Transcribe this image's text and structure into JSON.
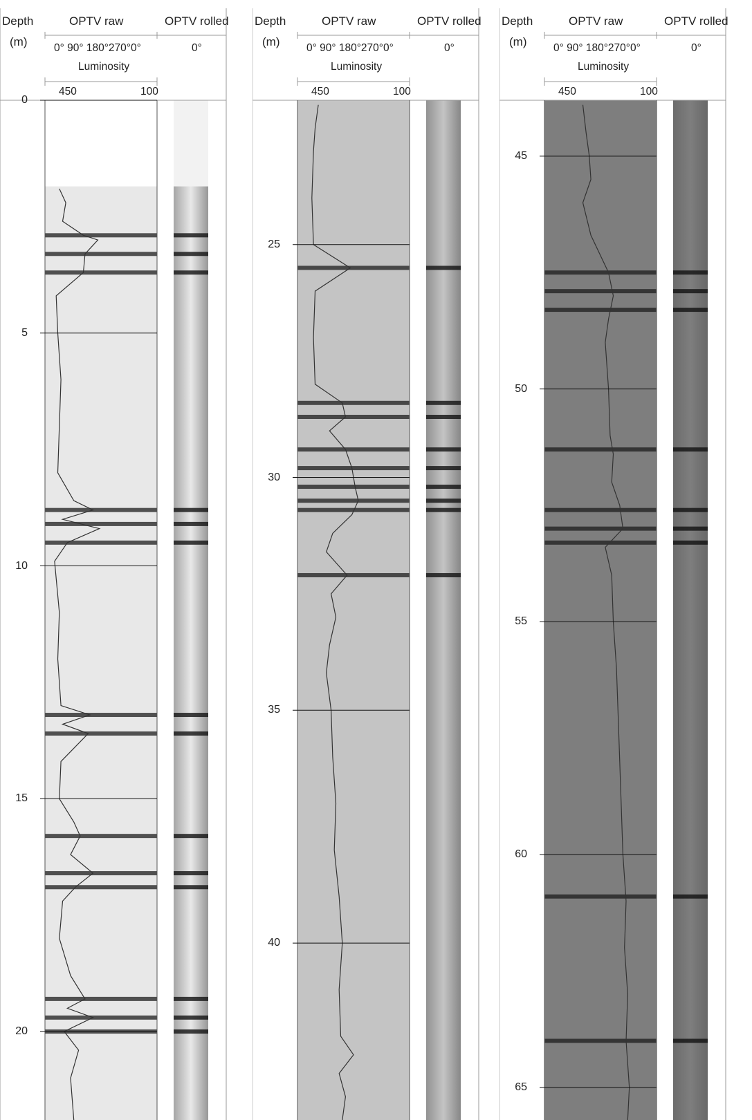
{
  "headers": {
    "depth": "Depth",
    "unit": "(m)",
    "raw": "OPTV raw",
    "rolled": "OPTV rolled",
    "azimuths": "0° 90° 180°270°0°",
    "rolled_azimuth": "0°",
    "luminosity": "Luminosity",
    "lum_left": "450",
    "lum_right": "100"
  },
  "colors": {
    "grid": "#999999",
    "trace": "#333333",
    "panel1_tone": "#e8e8e8",
    "panel2_tone": "#c4c4c4",
    "panel3_tone": "#7e7e7e"
  },
  "chart_data": [
    {
      "type": "line",
      "title": "",
      "xlabel": "Luminosity",
      "ylabel": "Depth (m)",
      "xlim": [
        450,
        100
      ],
      "ylim": [
        0,
        21.9
      ],
      "depth_ticks": [
        0,
        5,
        10,
        15,
        20
      ],
      "depth_tick_labels": [
        "0",
        "5",
        "10",
        "15",
        "20"
      ],
      "image_start_depth": 1.85,
      "dark_bands": [
        2.9,
        3.3,
        3.7,
        8.8,
        9.1,
        9.5,
        13.2,
        13.6,
        15.8,
        16.6,
        16.9,
        19.3,
        19.7,
        20.0
      ],
      "series": [
        {
          "depth": [
            1.9,
            2.2,
            2.6,
            2.9,
            3.0,
            3.3,
            3.7,
            4.2,
            5.0,
            6.0,
            7.0,
            8.0,
            8.6,
            8.8,
            9.0,
            9.2,
            9.5,
            9.9,
            11.0,
            12.0,
            13.0,
            13.2,
            13.4,
            13.6,
            14.2,
            15.0,
            15.5,
            15.8,
            16.2,
            16.6,
            16.9,
            17.2,
            18.0,
            18.8,
            19.3,
            19.5,
            19.7,
            20.0,
            20.4,
            21.0,
            21.9
          ],
          "luminosity": [
            405,
            385,
            395,
            330,
            285,
            325,
            330,
            415,
            410,
            400,
            405,
            410,
            360,
            300,
            395,
            280,
            380,
            420,
            405,
            410,
            400,
            310,
            395,
            315,
            400,
            405,
            360,
            340,
            370,
            300,
            355,
            395,
            405,
            370,
            325,
            380,
            300,
            390,
            345,
            370,
            360
          ]
        }
      ]
    },
    {
      "type": "line",
      "title": "",
      "xlabel": "Luminosity",
      "ylabel": "Depth (m)",
      "xlim": [
        450,
        100
      ],
      "ylim": [
        21.9,
        43.8
      ],
      "depth_ticks": [
        25,
        30,
        35,
        40
      ],
      "depth_tick_labels": [
        "25",
        "30",
        "35",
        "40"
      ],
      "image_start_depth": 21.9,
      "dark_bands": [
        25.5,
        28.4,
        28.7,
        29.4,
        29.8,
        30.2,
        30.5,
        30.7,
        32.1
      ],
      "series": [
        {
          "depth": [
            22.0,
            22.5,
            23.0,
            24.0,
            25.0,
            25.5,
            26.0,
            27.0,
            28.0,
            28.4,
            28.7,
            29.0,
            29.4,
            29.8,
            30.2,
            30.5,
            30.8,
            31.2,
            31.6,
            32.1,
            32.5,
            33.0,
            33.6,
            34.2,
            35.0,
            36.0,
            37.0,
            38.0,
            39.0,
            40.0,
            41.0,
            42.0,
            42.4,
            42.8,
            43.3,
            43.8
          ],
          "luminosity": [
            385,
            395,
            400,
            405,
            400,
            285,
            395,
            400,
            395,
            310,
            300,
            350,
            300,
            280,
            270,
            260,
            280,
            340,
            360,
            295,
            345,
            330,
            350,
            360,
            345,
            340,
            330,
            335,
            320,
            310,
            320,
            315,
            275,
            320,
            300,
            310
          ]
        }
      ]
    },
    {
      "type": "line",
      "title": "",
      "xlabel": "Luminosity",
      "ylabel": "Depth (m)",
      "xlim": [
        450,
        100
      ],
      "ylim": [
        43.8,
        65.7
      ],
      "depth_ticks": [
        45,
        50,
        55,
        60,
        65
      ],
      "depth_tick_labels": [
        "45",
        "50",
        "55",
        "60",
        "65"
      ],
      "image_start_depth": 43.8,
      "dark_bands": [
        47.5,
        47.9,
        48.3,
        51.3,
        52.6,
        53.0,
        53.3,
        60.9,
        64.0
      ],
      "series": [
        {
          "depth": [
            43.9,
            44.5,
            45.0,
            45.5,
            46.0,
            46.7,
            47.5,
            48.0,
            48.5,
            49.0,
            50.0,
            51.0,
            51.4,
            52.0,
            52.5,
            53.0,
            53.4,
            54.0,
            55.0,
            56.0,
            57.0,
            58.0,
            59.0,
            60.0,
            61.0,
            62.0,
            63.0,
            64.0,
            65.0,
            65.7
          ],
          "luminosity": [
            330,
            320,
            310,
            305,
            330,
            305,
            250,
            235,
            250,
            260,
            250,
            245,
            235,
            240,
            215,
            205,
            260,
            240,
            235,
            225,
            220,
            215,
            210,
            205,
            195,
            200,
            190,
            195,
            185,
            190
          ]
        }
      ]
    }
  ]
}
